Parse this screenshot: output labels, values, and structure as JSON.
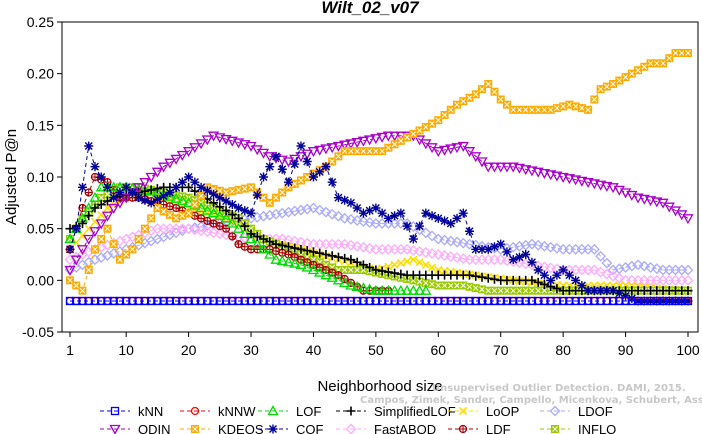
{
  "chart_data": {
    "type": "line",
    "title": "Wilt_02_v07",
    "xlabel": "Neighborhood size",
    "ylabel": "Adjusted P@n",
    "xlim": [
      1,
      100
    ],
    "ylim": [
      -0.05,
      0.25
    ],
    "xticks": [
      1,
      10,
      20,
      30,
      40,
      50,
      60,
      70,
      80,
      90,
      100
    ],
    "yticks": [
      -0.05,
      0.0,
      0.05,
      0.1,
      0.15,
      0.2,
      0.25
    ],
    "ytick_labels": [
      "-0.05",
      "0.00",
      "0.05",
      "0.10",
      "0.15",
      "0.20",
      "0.25"
    ],
    "grid": false,
    "legend_position": "bottom",
    "watermark": [
      "Unsupervised Outlier Detection. DAMI, 2015.",
      "Campos, Zimek, Sander, Campello, Micenkova, Schubert, Assent, Houle"
    ],
    "series": [
      {
        "name": "kNN",
        "color": "#0000ff",
        "marker": "square",
        "points": [
          [
            1,
            -0.02
          ],
          [
            100,
            -0.02
          ]
        ]
      },
      {
        "name": "kNNW",
        "color": "#ff0000",
        "marker": "circle",
        "points": [
          [
            1,
            -0.02
          ],
          [
            100,
            -0.02
          ]
        ]
      },
      {
        "name": "LOF",
        "color": "#00dd00",
        "marker": "triangle",
        "points": [
          [
            1,
            0.04
          ],
          [
            3,
            0.06
          ],
          [
            6,
            0.09
          ],
          [
            10,
            0.09
          ],
          [
            15,
            0.085
          ],
          [
            20,
            0.075
          ],
          [
            26,
            0.06
          ],
          [
            30,
            0.04
          ],
          [
            34,
            0.02
          ],
          [
            38,
            0.015
          ],
          [
            42,
            0.005
          ],
          [
            46,
            -0.005
          ],
          [
            50,
            -0.01
          ],
          [
            55,
            -0.01
          ],
          [
            58,
            -0.01
          ]
        ]
      },
      {
        "name": "SimplifiedLOF",
        "color": "#000000",
        "marker": "plus",
        "points": [
          [
            1,
            0.05
          ],
          [
            3,
            0.055
          ],
          [
            5,
            0.07
          ],
          [
            8,
            0.08
          ],
          [
            12,
            0.085
          ],
          [
            16,
            0.09
          ],
          [
            20,
            0.09
          ],
          [
            24,
            0.075
          ],
          [
            28,
            0.06
          ],
          [
            30,
            0.045
          ],
          [
            34,
            0.035
          ],
          [
            38,
            0.03
          ],
          [
            42,
            0.025
          ],
          [
            46,
            0.02
          ],
          [
            50,
            0.01
          ],
          [
            55,
            0.005
          ],
          [
            60,
            0.005
          ],
          [
            65,
            0.005
          ],
          [
            70,
            0.0
          ],
          [
            75,
            0.0
          ],
          [
            80,
            -0.01
          ],
          [
            85,
            -0.01
          ],
          [
            90,
            -0.01
          ],
          [
            95,
            -0.01
          ],
          [
            100,
            -0.01
          ]
        ]
      },
      {
        "name": "LoOP",
        "color": "#ffdd00",
        "marker": "x",
        "points": [
          [
            1,
            0.03
          ],
          [
            4,
            0.05
          ],
          [
            7,
            0.07
          ],
          [
            10,
            0.08
          ],
          [
            14,
            0.085
          ],
          [
            20,
            0.07
          ],
          [
            26,
            0.06
          ],
          [
            32,
            0.04
          ],
          [
            38,
            0.03
          ],
          [
            44,
            0.02
          ],
          [
            50,
            0.01
          ],
          [
            56,
            0.02
          ],
          [
            60,
            0.01
          ],
          [
            66,
            0.005
          ],
          [
            72,
            0.0
          ],
          [
            80,
            -0.005
          ],
          [
            86,
            -0.005
          ],
          [
            90,
            -0.005
          ],
          [
            100,
            -0.01
          ]
        ]
      },
      {
        "name": "LDOF",
        "color": "#aaaaff",
        "marker": "diamond",
        "points": [
          [
            1,
            0.01
          ],
          [
            5,
            0.02
          ],
          [
            10,
            0.03
          ],
          [
            15,
            0.04
          ],
          [
            20,
            0.05
          ],
          [
            25,
            0.055
          ],
          [
            30,
            0.06
          ],
          [
            35,
            0.065
          ],
          [
            40,
            0.07
          ],
          [
            45,
            0.06
          ],
          [
            50,
            0.055
          ],
          [
            55,
            0.055
          ],
          [
            60,
            0.04
          ],
          [
            65,
            0.035
          ],
          [
            70,
            0.03
          ],
          [
            75,
            0.035
          ],
          [
            80,
            0.03
          ],
          [
            85,
            0.03
          ],
          [
            88,
            0.01
          ],
          [
            92,
            0.015
          ],
          [
            96,
            0.01
          ],
          [
            100,
            0.01
          ]
        ]
      },
      {
        "name": "ODIN",
        "color": "#aa00cc",
        "marker": "triangle-down",
        "points": [
          [
            1,
            0.01
          ],
          [
            4,
            0.04
          ],
          [
            8,
            0.07
          ],
          [
            12,
            0.09
          ],
          [
            16,
            0.11
          ],
          [
            20,
            0.125
          ],
          [
            24,
            0.14
          ],
          [
            27,
            0.135
          ],
          [
            30,
            0.13
          ],
          [
            33,
            0.12
          ],
          [
            36,
            0.115
          ],
          [
            40,
            0.125
          ],
          [
            44,
            0.13
          ],
          [
            48,
            0.135
          ],
          [
            52,
            0.14
          ],
          [
            56,
            0.14
          ],
          [
            60,
            0.125
          ],
          [
            64,
            0.13
          ],
          [
            68,
            0.11
          ],
          [
            72,
            0.11
          ],
          [
            76,
            0.105
          ],
          [
            80,
            0.1
          ],
          [
            84,
            0.095
          ],
          [
            88,
            0.09
          ],
          [
            92,
            0.08
          ],
          [
            96,
            0.075
          ],
          [
            100,
            0.06
          ]
        ]
      },
      {
        "name": "KDEOS",
        "color": "#ffaa00",
        "marker": "square-x",
        "points": [
          [
            1,
            0.0
          ],
          [
            3,
            -0.01
          ],
          [
            5,
            0.03
          ],
          [
            7,
            0.05
          ],
          [
            9,
            0.02
          ],
          [
            11,
            0.03
          ],
          [
            13,
            0.05
          ],
          [
            15,
            0.07
          ],
          [
            18,
            0.06
          ],
          [
            20,
            0.065
          ],
          [
            23,
            0.09
          ],
          [
            26,
            0.085
          ],
          [
            30,
            0.09
          ],
          [
            33,
            0.075
          ],
          [
            36,
            0.09
          ],
          [
            39,
            0.1
          ],
          [
            42,
            0.11
          ],
          [
            45,
            0.125
          ],
          [
            48,
            0.125
          ],
          [
            51,
            0.125
          ],
          [
            54,
            0.135
          ],
          [
            57,
            0.145
          ],
          [
            60,
            0.155
          ],
          [
            63,
            0.17
          ],
          [
            66,
            0.18
          ],
          [
            68,
            0.19
          ],
          [
            70,
            0.175
          ],
          [
            72,
            0.165
          ],
          [
            75,
            0.165
          ],
          [
            78,
            0.165
          ],
          [
            81,
            0.17
          ],
          [
            84,
            0.165
          ],
          [
            86,
            0.185
          ],
          [
            88,
            0.19
          ],
          [
            91,
            0.2
          ],
          [
            94,
            0.21
          ],
          [
            96,
            0.21
          ],
          [
            98,
            0.22
          ],
          [
            100,
            0.22
          ]
        ]
      },
      {
        "name": "COF",
        "color": "#000099",
        "marker": "asterisk",
        "points": [
          [
            1,
            0.03
          ],
          [
            2,
            0.05
          ],
          [
            3,
            0.09
          ],
          [
            4,
            0.13
          ],
          [
            5,
            0.11
          ],
          [
            6,
            0.1
          ],
          [
            8,
            0.08
          ],
          [
            10,
            0.09
          ],
          [
            12,
            0.08
          ],
          [
            14,
            0.075
          ],
          [
            17,
            0.085
          ],
          [
            20,
            0.1
          ],
          [
            22,
            0.09
          ],
          [
            25,
            0.08
          ],
          [
            28,
            0.07
          ],
          [
            30,
            0.065
          ],
          [
            32,
            0.1
          ],
          [
            34,
            0.12
          ],
          [
            36,
            0.095
          ],
          [
            38,
            0.13
          ],
          [
            40,
            0.1
          ],
          [
            42,
            0.11
          ],
          [
            44,
            0.08
          ],
          [
            46,
            0.075
          ],
          [
            48,
            0.065
          ],
          [
            50,
            0.07
          ],
          [
            52,
            0.06
          ],
          [
            54,
            0.065
          ],
          [
            56,
            0.04
          ],
          [
            58,
            0.065
          ],
          [
            60,
            0.06
          ],
          [
            62,
            0.055
          ],
          [
            64,
            0.065
          ],
          [
            66,
            0.03
          ],
          [
            68,
            0.03
          ],
          [
            70,
            0.035
          ],
          [
            72,
            0.02
          ],
          [
            74,
            0.025
          ],
          [
            76,
            0.01
          ],
          [
            78,
            0.0
          ],
          [
            80,
            0.01
          ],
          [
            84,
            -0.01
          ],
          [
            88,
            -0.01
          ],
          [
            92,
            -0.02
          ],
          [
            96,
            -0.02
          ],
          [
            100,
            -0.02
          ]
        ]
      },
      {
        "name": "FastABOD",
        "color": "#ffaaff",
        "marker": "diamond",
        "points": [
          [
            1,
            0.02
          ],
          [
            5,
            0.03
          ],
          [
            10,
            0.04
          ],
          [
            15,
            0.05
          ],
          [
            20,
            0.05
          ],
          [
            25,
            0.045
          ],
          [
            30,
            0.04
          ],
          [
            35,
            0.04
          ],
          [
            40,
            0.035
          ],
          [
            45,
            0.035
          ],
          [
            50,
            0.03
          ],
          [
            55,
            0.03
          ],
          [
            60,
            0.025
          ],
          [
            65,
            0.02
          ],
          [
            70,
            0.02
          ],
          [
            75,
            0.015
          ],
          [
            80,
            0.01
          ],
          [
            85,
            0.01
          ],
          [
            90,
            0.0
          ],
          [
            95,
            0.0
          ],
          [
            100,
            0.0
          ]
        ]
      },
      {
        "name": "LDF",
        "color": "#aa0000",
        "marker": "circle-plus",
        "points": [
          [
            1,
            0.03
          ],
          [
            3,
            0.07
          ],
          [
            5,
            0.1
          ],
          [
            7,
            0.095
          ],
          [
            9,
            0.08
          ],
          [
            12,
            0.08
          ],
          [
            15,
            0.075
          ],
          [
            18,
            0.07
          ],
          [
            22,
            0.06
          ],
          [
            26,
            0.05
          ],
          [
            28,
            0.035
          ],
          [
            30,
            0.03
          ],
          [
            33,
            0.03
          ],
          [
            36,
            0.025
          ],
          [
            40,
            0.015
          ],
          [
            44,
            0.005
          ],
          [
            48,
            -0.01
          ],
          [
            52,
            -0.01
          ]
        ]
      },
      {
        "name": "INFLO",
        "color": "#99cc00",
        "marker": "square-x",
        "points": [
          [
            1,
            0.04
          ],
          [
            3,
            0.06
          ],
          [
            6,
            0.08
          ],
          [
            9,
            0.09
          ],
          [
            12,
            0.09
          ],
          [
            16,
            0.085
          ],
          [
            20,
            0.08
          ],
          [
            24,
            0.07
          ],
          [
            28,
            0.06
          ],
          [
            32,
            0.04
          ],
          [
            36,
            0.03
          ],
          [
            40,
            0.02
          ],
          [
            44,
            0.01
          ],
          [
            48,
            0.01
          ],
          [
            52,
            0.005
          ],
          [
            56,
            0.0
          ],
          [
            60,
            -0.005
          ],
          [
            64,
            -0.005
          ],
          [
            68,
            -0.01
          ],
          [
            72,
            -0.01
          ],
          [
            76,
            -0.01
          ],
          [
            80,
            -0.01
          ],
          [
            85,
            -0.01
          ],
          [
            90,
            -0.01
          ],
          [
            95,
            -0.01
          ],
          [
            100,
            -0.01
          ]
        ]
      }
    ]
  }
}
